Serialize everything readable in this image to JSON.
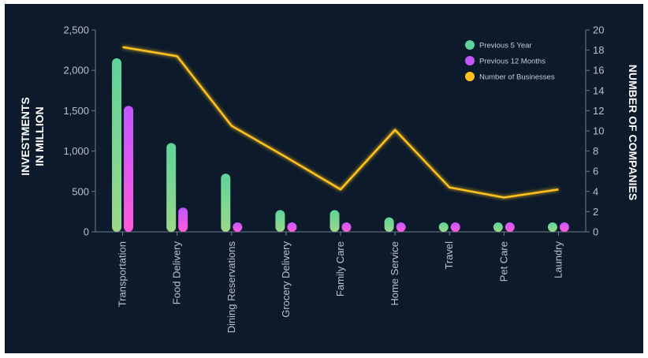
{
  "chart_data": {
    "type": "bar",
    "categories": [
      "Transportation",
      "Food Delivery",
      "Dining Reservations",
      "Grocery Delivery",
      "Family Care",
      "Home Service",
      "Travel",
      "Pet Care",
      "Laundry"
    ],
    "series": [
      {
        "name": "Previous 5 Year",
        "type": "bar",
        "axis": "left",
        "color_top": "#5ed49a",
        "color_bottom": "#9bd88a",
        "values": [
          2150,
          1100,
          720,
          270,
          270,
          180,
          90,
          40,
          20
        ]
      },
      {
        "name": "Previous 12 Months",
        "type": "bar",
        "axis": "left",
        "color_top": "#c258ff",
        "color_bottom": "#ff5ad8",
        "values": [
          1560,
          300,
          20,
          80,
          100,
          100,
          20,
          20,
          10
        ]
      },
      {
        "name": "Number of Businesses",
        "type": "line",
        "axis": "right",
        "color": "#ffc21a",
        "values": [
          18.3,
          17.4,
          10.5,
          7.4,
          4.2,
          10.1,
          4.4,
          3.4,
          4.2
        ]
      }
    ],
    "y_left": {
      "label_line1": "INVESTMENTS",
      "label_line2": "IN MILLION",
      "min": 0,
      "max": 2500,
      "step": 500,
      "tick_labels": [
        "0",
        "500",
        "1,000",
        "1,500",
        "2,000",
        "2,500"
      ]
    },
    "y_right": {
      "label": "NUMBER OF COMPANIES",
      "min": 0,
      "max": 20,
      "step": 2,
      "tick_labels": [
        "0",
        "2",
        "4",
        "6",
        "8",
        "10",
        "12",
        "14",
        "16",
        "18",
        "20"
      ]
    },
    "legend_position": "top-right",
    "grid": false
  }
}
